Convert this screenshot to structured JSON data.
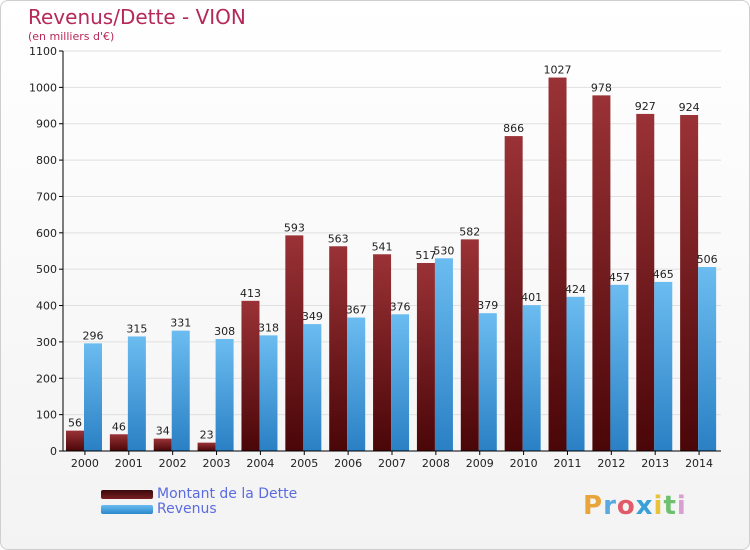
{
  "header": {
    "title": "Revenus/Dette - VION",
    "subtitle": "(en milliers d'€)"
  },
  "legend": {
    "debt_label": "Montant de la Dette",
    "revenue_label": "Revenus"
  },
  "brand": {
    "letters": [
      "P",
      "r",
      "o",
      "x",
      "i",
      "t",
      "i"
    ],
    "colors": [
      "#e8a63a",
      "#5aa9e0",
      "#e05a6a",
      "#3aa0d8",
      "#e8c23a",
      "#6ec06e",
      "#d8a0d0"
    ]
  },
  "colors": {
    "debt": "#7a1f22",
    "debt_light": "#9a3236",
    "revenue": "#4aa3e0",
    "revenue_light": "#6bbcf0",
    "grid": "#e0e0e0",
    "axis": "#000000"
  },
  "chart_data": {
    "type": "bar",
    "categories": [
      "2000",
      "2001",
      "2002",
      "2003",
      "2004",
      "2005",
      "2006",
      "2007",
      "2008",
      "2009",
      "2010",
      "2011",
      "2012",
      "2013",
      "2014"
    ],
    "series": [
      {
        "name": "Montant de la Dette",
        "values": [
          56,
          46,
          34,
          23,
          413,
          593,
          563,
          541,
          517,
          582,
          866,
          1027,
          978,
          927,
          924
        ]
      },
      {
        "name": "Revenus",
        "values": [
          296,
          315,
          331,
          308,
          318,
          349,
          367,
          376,
          530,
          379,
          401,
          424,
          457,
          465,
          506
        ]
      }
    ],
    "yticks": [
      0,
      100,
      200,
      300,
      400,
      500,
      600,
      700,
      800,
      900,
      1000,
      1100
    ],
    "ylim": [
      0,
      1100
    ],
    "grid": true,
    "legend_position": "bottom-left"
  }
}
